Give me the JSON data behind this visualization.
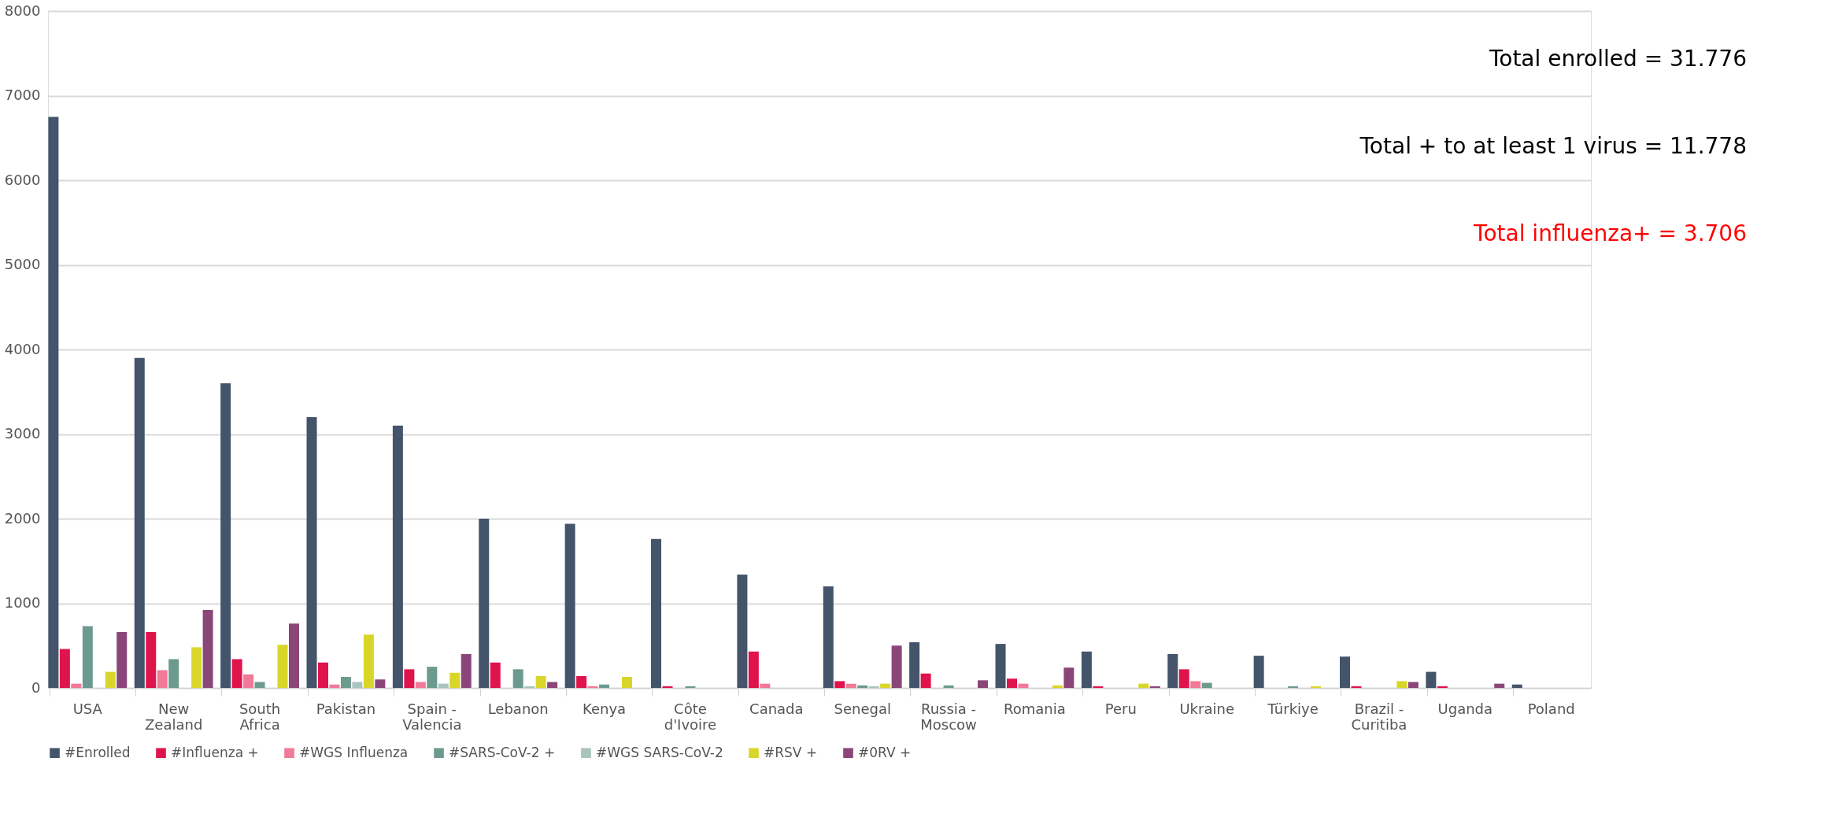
{
  "chart_data": {
    "type": "bar",
    "categories": [
      "USA",
      "New Zealand",
      "South Africa",
      "Pakistan",
      "Spain - Valencia",
      "Lebanon",
      "Kenya",
      "Côte d'Ivoire",
      "Canada",
      "Senegal",
      "Russia - Moscow",
      "Romania",
      "Peru",
      "Ukraine",
      "Türkiye",
      "Brazil - Curitiba",
      "Uganda",
      "Poland"
    ],
    "series": [
      {
        "name": "#Enrolled",
        "color": "#44546a",
        "values": [
          6750,
          3900,
          3600,
          3200,
          3100,
          2000,
          1940,
          1760,
          1340,
          1200,
          540,
          520,
          430,
          400,
          380,
          370,
          190,
          40
        ]
      },
      {
        "name": "#Influenza +",
        "color": "#e0144c",
        "values": [
          460,
          660,
          340,
          300,
          220,
          300,
          140,
          20,
          430,
          80,
          170,
          110,
          20,
          220,
          0,
          20,
          20,
          0
        ]
      },
      {
        "name": "#WGS Influenza",
        "color": "#f07a98",
        "values": [
          50,
          210,
          160,
          40,
          70,
          0,
          20,
          0,
          50,
          50,
          0,
          50,
          0,
          80,
          0,
          0,
          0,
          0
        ]
      },
      {
        "name": "#SARS-CoV-2 +",
        "color": "#6d9a8f",
        "values": [
          730,
          340,
          70,
          130,
          250,
          220,
          40,
          20,
          0,
          30,
          30,
          0,
          0,
          60,
          20,
          0,
          0,
          0
        ]
      },
      {
        "name": "#WGS SARS-CoV-2",
        "color": "#a9c4bd",
        "values": [
          0,
          0,
          0,
          70,
          50,
          20,
          0,
          0,
          0,
          20,
          0,
          0,
          0,
          0,
          0,
          0,
          0,
          0
        ]
      },
      {
        "name": "#RSV +",
        "color": "#d9d62a",
        "values": [
          190,
          480,
          510,
          630,
          180,
          140,
          130,
          0,
          0,
          50,
          0,
          30,
          50,
          0,
          20,
          80,
          0,
          0
        ]
      },
      {
        "name": "#0RV +",
        "color": "#8b4679",
        "values": [
          660,
          920,
          760,
          100,
          400,
          70,
          0,
          0,
          0,
          500,
          90,
          240,
          20,
          0,
          0,
          70,
          50,
          0
        ]
      }
    ],
    "ylim": [
      0,
      8000
    ],
    "yticks": [
      0,
      1000,
      2000,
      3000,
      4000,
      5000,
      6000,
      7000,
      8000
    ],
    "grid": "y",
    "legend": "bottom",
    "annotations": [
      "Total enrolled = 31.776",
      "Total + to at least 1 virus = 11.778",
      "Total influenza+ = 3.706"
    ]
  }
}
